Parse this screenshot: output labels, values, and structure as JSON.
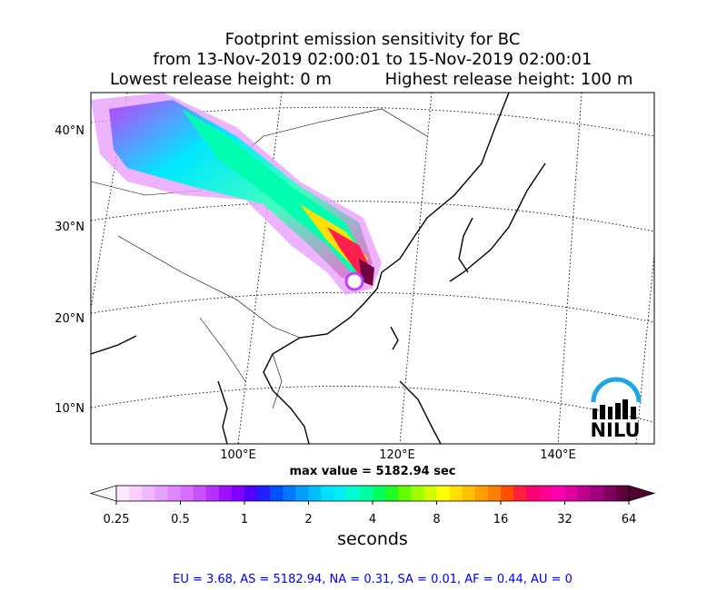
{
  "title": {
    "line1": "Footprint emission sensitivity for BC",
    "line2": "from 13-Nov-2019 02:00:01 to 15-Nov-2019 02:00:01",
    "line3_left": "Lowest release height: 0 m",
    "line3_right": "Highest release height: 100 m"
  },
  "map": {
    "lat_labels": [
      "40°N",
      "30°N",
      "20°N",
      "10°N"
    ],
    "lon_labels": [
      "100°E",
      "120°E",
      "140°E"
    ],
    "logo": "NILU"
  },
  "max_value_label": "max value = 5182.94 sec",
  "colorbar": {
    "ticks": [
      0.25,
      0.5,
      1,
      2,
      4,
      8,
      16,
      32,
      64
    ],
    "log_scale": true,
    "label": "seconds"
  },
  "footer": "EU = 3.68,  AS = 5182.94,  NA = 0.31,  SA = 0.01,  AF = 0.44,  AU = 0"
}
